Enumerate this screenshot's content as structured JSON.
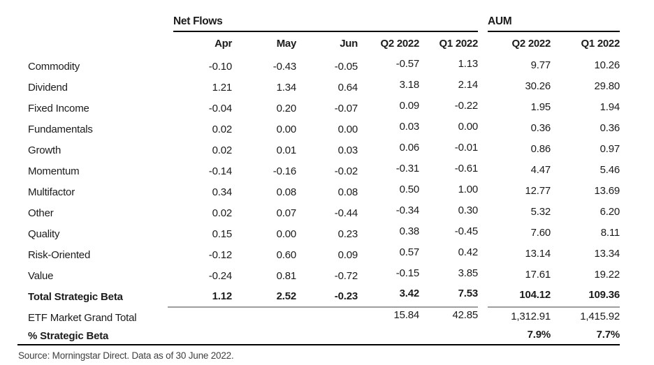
{
  "chart_data": {
    "type": "table",
    "column_groups": [
      {
        "label": "Net Flows",
        "span": 5
      },
      {
        "label": "AUM",
        "span": 2
      }
    ],
    "columns": [
      "Apr",
      "May",
      "Jun",
      "Q2 2022",
      "Q1 2022",
      "Q2 2022",
      "Q1 2022"
    ],
    "rows": [
      {
        "label": "Commodity",
        "values": [
          "-0.10",
          "-0.43",
          "-0.05",
          "-0.57",
          "1.13",
          "9.77",
          "10.26"
        ],
        "emphasis": "normal"
      },
      {
        "label": "Dividend",
        "values": [
          "1.21",
          "1.34",
          "0.64",
          "3.18",
          "2.14",
          "30.26",
          "29.80"
        ],
        "emphasis": "normal"
      },
      {
        "label": "Fixed Income",
        "values": [
          "-0.04",
          "0.20",
          "-0.07",
          "0.09",
          "-0.22",
          "1.95",
          "1.94"
        ],
        "emphasis": "normal"
      },
      {
        "label": "Fundamentals",
        "values": [
          "0.02",
          "0.00",
          "0.00",
          "0.03",
          "0.00",
          "0.36",
          "0.36"
        ],
        "emphasis": "normal"
      },
      {
        "label": "Growth",
        "values": [
          "0.02",
          "0.01",
          "0.03",
          "0.06",
          "-0.01",
          "0.86",
          "0.97"
        ],
        "emphasis": "normal"
      },
      {
        "label": "Momentum",
        "values": [
          "-0.14",
          "-0.16",
          "-0.02",
          "-0.31",
          "-0.61",
          "4.47",
          "5.46"
        ],
        "emphasis": "normal"
      },
      {
        "label": "Multifactor",
        "values": [
          "0.34",
          "0.08",
          "0.08",
          "0.50",
          "1.00",
          "12.77",
          "13.69"
        ],
        "emphasis": "normal"
      },
      {
        "label": "Other",
        "values": [
          "0.02",
          "0.07",
          "-0.44",
          "-0.34",
          "0.30",
          "5.32",
          "6.20"
        ],
        "emphasis": "normal"
      },
      {
        "label": "Quality",
        "values": [
          "0.15",
          "0.00",
          "0.23",
          "0.38",
          "-0.45",
          "7.60",
          "8.11"
        ],
        "emphasis": "normal"
      },
      {
        "label": "Risk-Oriented",
        "values": [
          "-0.12",
          "0.60",
          "0.09",
          "0.57",
          "0.42",
          "13.14",
          "13.34"
        ],
        "emphasis": "normal"
      },
      {
        "label": "Value",
        "values": [
          "-0.24",
          "0.81",
          "-0.72",
          "-0.15",
          "3.85",
          "17.61",
          "19.22"
        ],
        "emphasis": "normal"
      },
      {
        "label": "Total Strategic Beta",
        "values": [
          "1.12",
          "2.52",
          "-0.23",
          "3.42",
          "7.53",
          "104.12",
          "109.36"
        ],
        "emphasis": "bold",
        "rule_below": "gray"
      },
      {
        "label": "ETF Market Grand Total",
        "values": [
          "",
          "",
          "",
          "15.84",
          "42.85",
          "1,312.91",
          "1,415.92"
        ],
        "emphasis": "normal"
      },
      {
        "label": "% Strategic Beta",
        "values": [
          "",
          "",
          "",
          "",
          "",
          "7.9%",
          "7.7%"
        ],
        "emphasis": "bold",
        "rule_below": "black"
      }
    ],
    "source": "Source: Morningstar Direct. Data as of 30 June 2022.",
    "layout_hints": {
      "grid": "off",
      "group_rule_color": "#000000",
      "total_rule_color": "#9e9e9e",
      "bottom_rule_color": "#000000"
    },
    "colors": {
      "text": "#1b1b1b",
      "source_text": "#3f3f3f",
      "rule_black": "#000000",
      "rule_gray": "#9e9e9e"
    }
  }
}
